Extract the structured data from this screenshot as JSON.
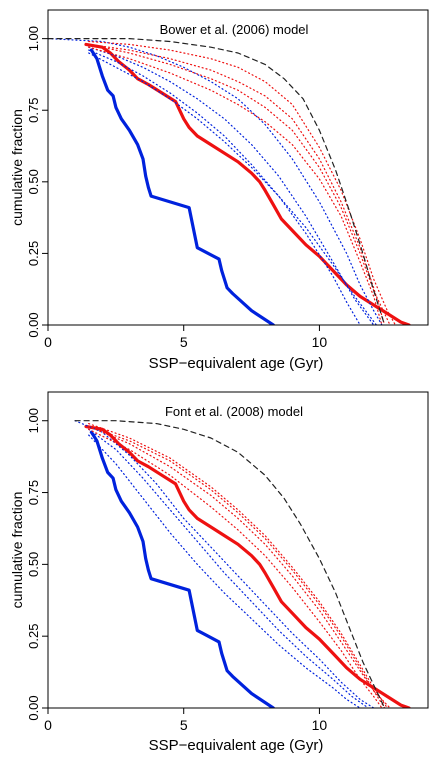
{
  "chart_data": [
    {
      "type": "line",
      "title": "Bower et al. (2006) model",
      "xlabel": "SSP−equivalent age (Gyr)",
      "ylabel": "cumulative fraction",
      "xlim": [
        0,
        14
      ],
      "ylim": [
        0,
        1.1
      ],
      "xticks": [
        0,
        5,
        10
      ],
      "yticks": [
        0.0,
        0.25,
        0.5,
        0.75,
        1.0
      ],
      "xtick_labels": [
        "0",
        "5",
        "10"
      ],
      "ytick_labels": [
        "0.00",
        "0.25",
        "0.50",
        "0.75",
        "1.00"
      ],
      "grid": false,
      "legend": "none",
      "series": [
        {
          "color": "#0022dd",
          "style": "solid",
          "width": 3.2,
          "x": [
            1.6,
            1.8,
            2.0,
            2.2,
            2.4,
            2.5,
            2.7,
            3.0,
            3.3,
            3.5,
            3.6,
            3.7,
            3.8,
            5.2,
            5.5,
            6.3,
            6.4,
            6.5,
            6.6,
            6.8,
            7.5,
            8.3
          ],
          "y": [
            0.96,
            0.93,
            0.87,
            0.82,
            0.8,
            0.76,
            0.72,
            0.68,
            0.63,
            0.58,
            0.52,
            0.48,
            0.45,
            0.41,
            0.27,
            0.23,
            0.19,
            0.16,
            0.13,
            0.11,
            0.05,
            0.0
          ]
        },
        {
          "color": "#ee1111",
          "style": "solid",
          "width": 3.2,
          "x": [
            1.4,
            2.0,
            2.3,
            2.6,
            3.0,
            3.3,
            3.7,
            4.2,
            4.7,
            5.0,
            5.2,
            5.5,
            6.0,
            6.5,
            7.0,
            7.5,
            7.8,
            8.0,
            8.3,
            8.6,
            9.0,
            9.5,
            10.0,
            10.5,
            11.0,
            11.5,
            12.0,
            12.5,
            13.0,
            13.3
          ],
          "y": [
            0.98,
            0.97,
            0.95,
            0.92,
            0.89,
            0.86,
            0.84,
            0.81,
            0.78,
            0.72,
            0.69,
            0.66,
            0.63,
            0.6,
            0.57,
            0.53,
            0.5,
            0.47,
            0.42,
            0.37,
            0.33,
            0.28,
            0.24,
            0.19,
            0.14,
            0.1,
            0.07,
            0.04,
            0.01,
            0.0
          ]
        },
        {
          "color": "#0022dd",
          "style": "dotted",
          "width": 1.2,
          "x": [
            0,
            2.0,
            3.0,
            4.0,
            5.0,
            6.0,
            7.0,
            8.0,
            9.0,
            10.0,
            11.0,
            11.5,
            12.0,
            12.3
          ],
          "y": [
            1.0,
            0.99,
            0.97,
            0.94,
            0.9,
            0.85,
            0.79,
            0.7,
            0.58,
            0.43,
            0.25,
            0.14,
            0.05,
            0.0
          ]
        },
        {
          "color": "#0022dd",
          "style": "dotted",
          "width": 1.2,
          "x": [
            1.5,
            2.5,
            3.5,
            4.5,
            5.5,
            6.5,
            7.5,
            8.5,
            9.5,
            10.5,
            11.3,
            12.0
          ],
          "y": [
            0.97,
            0.94,
            0.9,
            0.85,
            0.79,
            0.72,
            0.63,
            0.52,
            0.38,
            0.22,
            0.09,
            0.0
          ]
        },
        {
          "color": "#0022dd",
          "style": "dotted",
          "width": 1.2,
          "x": [
            1.5,
            2.5,
            3.5,
            4.5,
            5.5,
            6.5,
            7.5,
            8.5,
            9.5,
            10.5,
            11.0,
            11.5
          ],
          "y": [
            0.96,
            0.92,
            0.87,
            0.81,
            0.74,
            0.66,
            0.56,
            0.45,
            0.32,
            0.17,
            0.08,
            0.0
          ]
        },
        {
          "color": "#0022dd",
          "style": "dotted",
          "width": 1.2,
          "x": [
            1.5,
            2.5,
            3.5,
            4.5,
            5.5,
            6.5,
            7.5,
            8.5,
            9.5,
            10.5,
            11.3,
            12.1
          ],
          "y": [
            0.95,
            0.9,
            0.85,
            0.79,
            0.72,
            0.64,
            0.55,
            0.45,
            0.34,
            0.21,
            0.1,
            0.0
          ]
        },
        {
          "color": "#ee1111",
          "style": "dotted",
          "width": 1.2,
          "x": [
            1.5,
            3.0,
            4.5,
            6.0,
            7.0,
            8.0,
            9.0,
            10.0,
            10.8,
            11.5,
            12.0,
            12.5,
            12.8
          ],
          "y": [
            0.99,
            0.98,
            0.96,
            0.93,
            0.9,
            0.85,
            0.77,
            0.62,
            0.47,
            0.3,
            0.16,
            0.05,
            0.0
          ]
        },
        {
          "color": "#ee1111",
          "style": "dotted",
          "width": 1.2,
          "x": [
            1.5,
            3.0,
            4.5,
            6.0,
            7.0,
            8.0,
            9.0,
            10.0,
            10.8,
            11.5,
            12.0,
            12.4
          ],
          "y": [
            0.98,
            0.96,
            0.93,
            0.89,
            0.85,
            0.8,
            0.72,
            0.58,
            0.43,
            0.27,
            0.13,
            0.0
          ]
        },
        {
          "color": "#ee1111",
          "style": "dotted",
          "width": 1.2,
          "x": [
            1.5,
            3.0,
            4.5,
            6.0,
            7.0,
            8.0,
            9.0,
            10.0,
            10.8,
            11.5,
            12.0,
            12.6
          ],
          "y": [
            0.98,
            0.95,
            0.91,
            0.86,
            0.82,
            0.76,
            0.68,
            0.55,
            0.41,
            0.25,
            0.12,
            0.0
          ]
        },
        {
          "color": "#ee1111",
          "style": "dotted",
          "width": 1.2,
          "x": [
            1.5,
            3.0,
            4.5,
            6.0,
            7.0,
            8.0,
            9.0,
            10.0,
            10.8,
            11.5,
            12.0,
            12.3
          ],
          "y": [
            0.97,
            0.93,
            0.88,
            0.82,
            0.77,
            0.71,
            0.63,
            0.51,
            0.38,
            0.22,
            0.1,
            0.0
          ]
        },
        {
          "color": "#222222",
          "style": "dashed",
          "width": 1.2,
          "x": [
            0,
            1.5,
            3.0,
            4.5,
            6.0,
            7.0,
            8.0,
            8.7,
            9.4,
            10.0,
            10.6,
            11.1,
            11.6,
            12.0,
            12.4
          ],
          "y": [
            1.0,
            1.0,
            1.0,
            0.99,
            0.97,
            0.95,
            0.91,
            0.86,
            0.79,
            0.68,
            0.54,
            0.4,
            0.25,
            0.12,
            0.0
          ]
        }
      ]
    },
    {
      "type": "line",
      "title": "Font et al. (2008) model",
      "xlabel": "SSP−equivalent age (Gyr)",
      "ylabel": "cumulative fraction",
      "xlim": [
        0,
        14
      ],
      "ylim": [
        0,
        1.1
      ],
      "xticks": [
        0,
        5,
        10
      ],
      "yticks": [
        0.0,
        0.25,
        0.5,
        0.75,
        1.0
      ],
      "xtick_labels": [
        "0",
        "5",
        "10"
      ],
      "ytick_labels": [
        "0.00",
        "0.25",
        "0.50",
        "0.75",
        "1.00"
      ],
      "grid": false,
      "legend": "none",
      "series": [
        {
          "color": "#0022dd",
          "style": "solid",
          "width": 3.2,
          "x": [
            1.6,
            1.8,
            2.0,
            2.2,
            2.4,
            2.5,
            2.7,
            3.0,
            3.3,
            3.5,
            3.6,
            3.7,
            3.8,
            5.2,
            5.5,
            6.3,
            6.4,
            6.5,
            6.6,
            6.8,
            7.5,
            8.3
          ],
          "y": [
            0.96,
            0.93,
            0.87,
            0.82,
            0.8,
            0.76,
            0.72,
            0.68,
            0.63,
            0.58,
            0.52,
            0.48,
            0.45,
            0.41,
            0.27,
            0.23,
            0.19,
            0.16,
            0.13,
            0.11,
            0.05,
            0.0
          ]
        },
        {
          "color": "#ee1111",
          "style": "solid",
          "width": 3.2,
          "x": [
            1.4,
            2.0,
            2.3,
            2.6,
            3.0,
            3.3,
            3.7,
            4.2,
            4.7,
            5.0,
            5.2,
            5.5,
            6.0,
            6.5,
            7.0,
            7.5,
            7.8,
            8.0,
            8.3,
            8.6,
            9.0,
            9.5,
            10.0,
            10.5,
            11.0,
            11.5,
            12.0,
            12.5,
            13.0,
            13.3
          ],
          "y": [
            0.98,
            0.97,
            0.95,
            0.92,
            0.89,
            0.86,
            0.84,
            0.81,
            0.78,
            0.72,
            0.69,
            0.66,
            0.63,
            0.6,
            0.57,
            0.53,
            0.5,
            0.47,
            0.42,
            0.37,
            0.33,
            0.28,
            0.24,
            0.19,
            0.14,
            0.1,
            0.07,
            0.04,
            0.01,
            0.0
          ]
        },
        {
          "color": "#0022dd",
          "style": "dotted",
          "width": 1.2,
          "x": [
            1.0,
            2.0,
            3.0,
            4.0,
            5.0,
            6.0,
            7.0,
            8.0,
            9.0,
            10.0,
            10.8,
            11.5,
            12.0
          ],
          "y": [
            1.0,
            0.96,
            0.88,
            0.78,
            0.66,
            0.56,
            0.46,
            0.36,
            0.26,
            0.17,
            0.09,
            0.03,
            0.0
          ]
        },
        {
          "color": "#0022dd",
          "style": "dotted",
          "width": 1.2,
          "x": [
            1.5,
            2.5,
            3.5,
            4.5,
            5.5,
            6.5,
            7.5,
            8.5,
            9.5,
            10.5,
            11.2,
            11.8
          ],
          "y": [
            0.97,
            0.9,
            0.8,
            0.69,
            0.58,
            0.47,
            0.37,
            0.27,
            0.18,
            0.1,
            0.04,
            0.0
          ]
        },
        {
          "color": "#0022dd",
          "style": "dotted",
          "width": 1.2,
          "x": [
            1.5,
            2.5,
            3.5,
            4.5,
            5.5,
            6.5,
            7.5,
            8.5,
            9.5,
            10.5,
            11.0,
            11.5
          ],
          "y": [
            0.95,
            0.85,
            0.73,
            0.61,
            0.5,
            0.4,
            0.31,
            0.22,
            0.14,
            0.07,
            0.03,
            0.0
          ]
        },
        {
          "color": "#ee1111",
          "style": "dotted",
          "width": 1.2,
          "x": [
            1.5,
            3.0,
            4.5,
            6.0,
            7.0,
            8.0,
            9.0,
            10.0,
            10.8,
            11.5,
            12.0,
            12.5
          ],
          "y": [
            0.99,
            0.94,
            0.87,
            0.77,
            0.69,
            0.6,
            0.49,
            0.37,
            0.26,
            0.15,
            0.07,
            0.0
          ]
        },
        {
          "color": "#ee1111",
          "style": "dotted",
          "width": 1.2,
          "x": [
            1.5,
            3.0,
            4.5,
            6.0,
            7.0,
            8.0,
            9.0,
            10.0,
            10.8,
            11.5,
            12.0,
            12.4
          ],
          "y": [
            0.98,
            0.92,
            0.84,
            0.74,
            0.66,
            0.57,
            0.46,
            0.34,
            0.23,
            0.13,
            0.06,
            0.0
          ]
        },
        {
          "color": "#ee1111",
          "style": "dotted",
          "width": 1.2,
          "x": [
            1.5,
            3.0,
            4.5,
            6.0,
            7.0,
            8.0,
            9.0,
            10.0,
            10.8,
            11.5,
            12.0,
            12.6
          ],
          "y": [
            0.98,
            0.93,
            0.86,
            0.76,
            0.68,
            0.59,
            0.48,
            0.36,
            0.25,
            0.14,
            0.06,
            0.0
          ]
        },
        {
          "color": "#ee1111",
          "style": "dotted",
          "width": 1.2,
          "x": [
            1.5,
            3.0,
            4.5,
            6.0,
            7.0,
            8.0,
            9.0,
            10.0,
            10.8,
            11.5,
            12.0,
            12.3
          ],
          "y": [
            0.97,
            0.9,
            0.81,
            0.7,
            0.62,
            0.53,
            0.42,
            0.3,
            0.2,
            0.1,
            0.04,
            0.0
          ]
        },
        {
          "color": "#222222",
          "style": "dashed",
          "width": 1.2,
          "x": [
            1.0,
            2.5,
            4.0,
            5.0,
            6.0,
            7.0,
            8.0,
            8.7,
            9.3,
            10.0,
            10.6,
            11.1,
            11.6,
            12.0,
            12.4
          ],
          "y": [
            1.0,
            1.0,
            0.99,
            0.97,
            0.94,
            0.89,
            0.81,
            0.73,
            0.64,
            0.52,
            0.4,
            0.28,
            0.16,
            0.08,
            0.0
          ]
        }
      ]
    }
  ]
}
